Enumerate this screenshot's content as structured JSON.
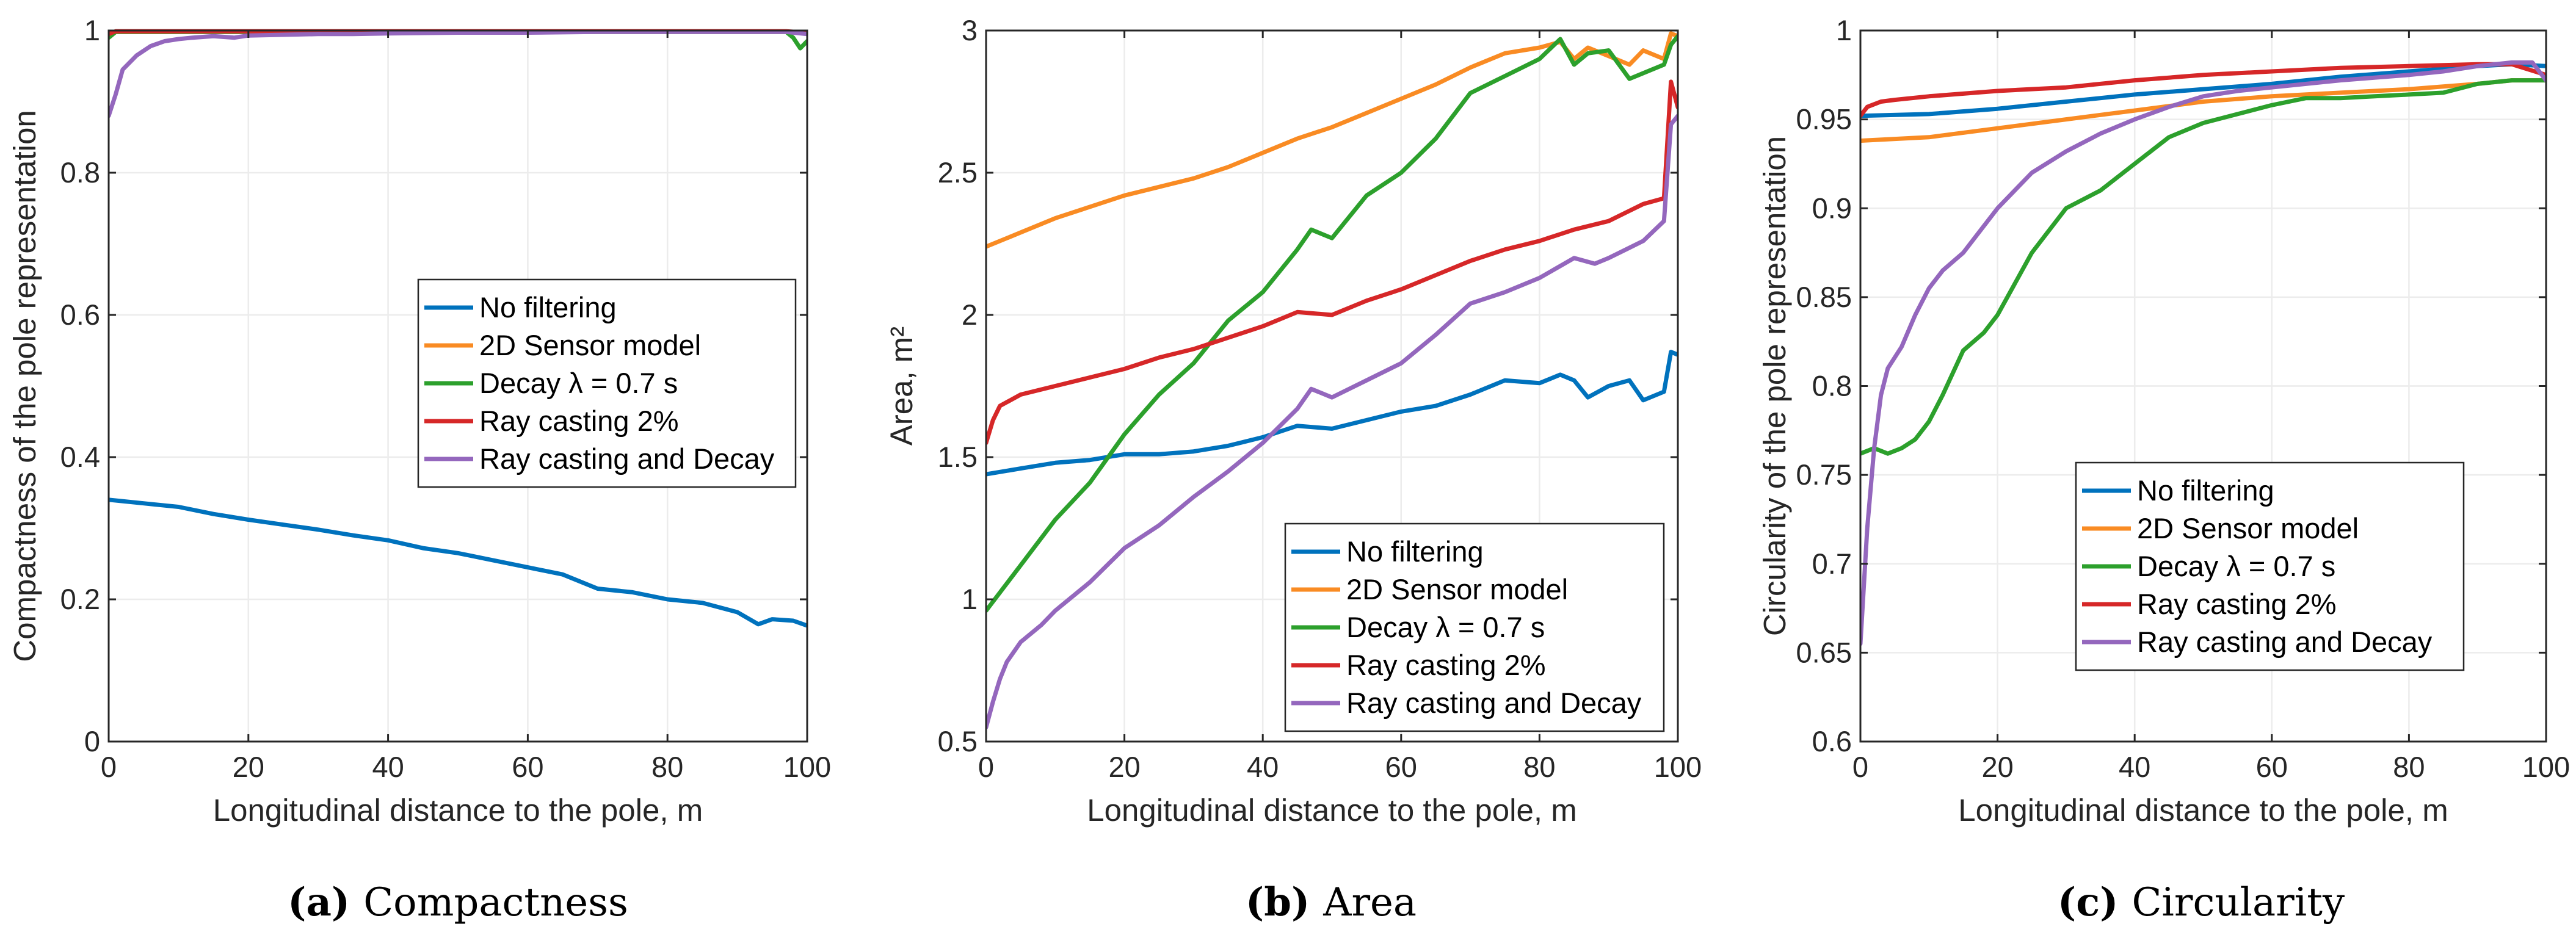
{
  "colors": {
    "blue": "#0072BD",
    "orange": "#F98B23",
    "green": "#2CA02C",
    "red": "#D62728",
    "purple": "#9467BD"
  },
  "chart_data": [
    {
      "type": "line",
      "panel": "a",
      "caption_letter": "(a)",
      "caption_text": "Compactness",
      "xlabel": "Longitudinal distance to the pole, m",
      "ylabel": "Compactness of the pole representation",
      "xlim": [
        0,
        100
      ],
      "ylim": [
        0,
        1
      ],
      "xticks": [
        0,
        20,
        40,
        60,
        80,
        100
      ],
      "xtick_labels": [
        "0",
        "20",
        "40",
        "60",
        "80",
        "100"
      ],
      "yticks": [
        0,
        0.2,
        0.4,
        0.6,
        0.8,
        1
      ],
      "ytick_labels": [
        "0",
        "0.2",
        "0.4",
        "0.6",
        "0.8",
        "1"
      ],
      "grid": true,
      "legend_position": "center-right",
      "series": [
        {
          "name": "No filtering",
          "color": "#0072BD",
          "x": [
            0,
            5,
            10,
            15,
            20,
            25,
            30,
            35,
            40,
            45,
            50,
            55,
            60,
            65,
            70,
            75,
            80,
            85,
            90,
            93,
            95,
            98,
            100
          ],
          "y": [
            0.34,
            0.335,
            0.33,
            0.32,
            0.312,
            0.305,
            0.298,
            0.29,
            0.283,
            0.272,
            0.265,
            0.255,
            0.245,
            0.235,
            0.215,
            0.21,
            0.2,
            0.195,
            0.182,
            0.165,
            0.172,
            0.17,
            0.163
          ]
        },
        {
          "name": "2D Sensor model",
          "color": "#F98B23",
          "x": [
            0,
            1,
            10,
            20,
            30,
            40,
            50,
            60,
            70,
            80,
            90,
            97,
            100
          ],
          "y": [
            0.99,
            0.998,
            0.998,
            0.998,
            0.998,
            0.998,
            0.998,
            0.998,
            0.998,
            0.998,
            0.998,
            0.998,
            0.996
          ]
        },
        {
          "name": "Decay λ = 0.7 s",
          "color": "#2CA02C",
          "x": [
            0,
            1,
            10,
            20,
            30,
            40,
            50,
            60,
            70,
            80,
            90,
            97,
            98,
            99,
            100
          ],
          "y": [
            0.99,
            0.998,
            0.998,
            0.998,
            0.998,
            0.998,
            0.998,
            0.998,
            0.998,
            0.998,
            0.998,
            0.998,
            0.99,
            0.975,
            0.985
          ]
        },
        {
          "name": "Ray casting 2%",
          "color": "#D62728",
          "x": [
            0,
            1,
            10,
            20,
            30,
            40,
            50,
            60,
            70,
            80,
            90,
            97,
            100
          ],
          "y": [
            0.995,
            0.999,
            0.999,
            0.999,
            0.999,
            0.999,
            0.999,
            0.999,
            0.999,
            0.999,
            0.999,
            0.999,
            0.997
          ]
        },
        {
          "name": "Ray casting and Decay",
          "color": "#9467BD",
          "x": [
            0,
            1,
            2,
            4,
            6,
            8,
            10,
            12,
            15,
            18,
            20,
            25,
            30,
            35,
            40,
            50,
            60,
            70,
            80,
            90,
            97,
            100
          ],
          "y": [
            0.88,
            0.91,
            0.945,
            0.965,
            0.978,
            0.985,
            0.988,
            0.99,
            0.992,
            0.99,
            0.993,
            0.994,
            0.995,
            0.995,
            0.996,
            0.997,
            0.997,
            0.998,
            0.998,
            0.998,
            0.998,
            0.995
          ]
        }
      ]
    },
    {
      "type": "line",
      "panel": "b",
      "caption_letter": "(b)",
      "caption_text": "Area",
      "xlabel": "Longitudinal distance to the pole, m",
      "ylabel": "Area, m²",
      "xlim": [
        0,
        100
      ],
      "ylim": [
        0.5,
        3
      ],
      "xticks": [
        0,
        20,
        40,
        60,
        80,
        100
      ],
      "xtick_labels": [
        "0",
        "20",
        "40",
        "60",
        "80",
        "100"
      ],
      "yticks": [
        0.5,
        1,
        1.5,
        2,
        2.5,
        3
      ],
      "ytick_labels": [
        "0.5",
        "1",
        "1.5",
        "2",
        "2.5",
        "3"
      ],
      "grid": true,
      "legend_position": "bottom-right",
      "series": [
        {
          "name": "No filtering",
          "color": "#0072BD",
          "x": [
            0,
            5,
            10,
            15,
            20,
            25,
            30,
            35,
            40,
            45,
            50,
            55,
            60,
            65,
            70,
            75,
            80,
            83,
            85,
            87,
            90,
            93,
            95,
            98,
            99,
            100
          ],
          "y": [
            1.44,
            1.46,
            1.48,
            1.49,
            1.51,
            1.51,
            1.52,
            1.54,
            1.57,
            1.61,
            1.6,
            1.63,
            1.66,
            1.68,
            1.72,
            1.77,
            1.76,
            1.79,
            1.77,
            1.71,
            1.75,
            1.77,
            1.7,
            1.73,
            1.87,
            1.86
          ]
        },
        {
          "name": "2D Sensor model",
          "color": "#F98B23",
          "x": [
            0,
            5,
            10,
            15,
            20,
            25,
            30,
            35,
            40,
            45,
            50,
            55,
            60,
            65,
            70,
            75,
            80,
            83,
            85,
            87,
            90,
            93,
            95,
            98,
            99,
            100
          ],
          "y": [
            2.24,
            2.29,
            2.34,
            2.38,
            2.42,
            2.45,
            2.48,
            2.52,
            2.57,
            2.62,
            2.66,
            2.71,
            2.76,
            2.81,
            2.87,
            2.92,
            2.94,
            2.96,
            2.9,
            2.94,
            2.91,
            2.88,
            2.93,
            2.9,
            2.99,
            2.98
          ]
        },
        {
          "name": "Decay λ = 0.7 s",
          "color": "#2CA02C",
          "x": [
            0,
            5,
            10,
            15,
            20,
            25,
            30,
            35,
            40,
            45,
            47,
            50,
            55,
            60,
            65,
            70,
            75,
            80,
            83,
            85,
            87,
            90,
            93,
            95,
            98,
            99,
            100
          ],
          "y": [
            0.96,
            1.12,
            1.28,
            1.41,
            1.58,
            1.72,
            1.83,
            1.98,
            2.08,
            2.23,
            2.3,
            2.27,
            2.42,
            2.5,
            2.62,
            2.78,
            2.84,
            2.9,
            2.97,
            2.88,
            2.92,
            2.93,
            2.83,
            2.85,
            2.88,
            2.95,
            2.98
          ]
        },
        {
          "name": "Ray casting 2%",
          "color": "#D62728",
          "x": [
            0,
            1,
            2,
            5,
            10,
            15,
            20,
            25,
            30,
            35,
            40,
            45,
            50,
            55,
            60,
            65,
            70,
            75,
            80,
            85,
            90,
            95,
            98,
            99,
            100
          ],
          "y": [
            1.55,
            1.63,
            1.68,
            1.72,
            1.75,
            1.78,
            1.81,
            1.85,
            1.88,
            1.92,
            1.96,
            2.01,
            2.0,
            2.05,
            2.09,
            2.14,
            2.19,
            2.23,
            2.26,
            2.3,
            2.33,
            2.39,
            2.41,
            2.82,
            2.73
          ]
        },
        {
          "name": "Ray casting and Decay",
          "color": "#9467BD",
          "x": [
            0,
            1,
            2,
            3,
            5,
            8,
            10,
            15,
            20,
            25,
            30,
            35,
            40,
            45,
            47,
            50,
            55,
            60,
            65,
            70,
            75,
            80,
            85,
            88,
            90,
            95,
            98,
            99,
            100
          ],
          "y": [
            0.55,
            0.64,
            0.72,
            0.78,
            0.85,
            0.91,
            0.96,
            1.06,
            1.18,
            1.26,
            1.36,
            1.45,
            1.55,
            1.67,
            1.74,
            1.71,
            1.77,
            1.83,
            1.93,
            2.04,
            2.08,
            2.13,
            2.2,
            2.18,
            2.2,
            2.26,
            2.33,
            2.67,
            2.7
          ]
        }
      ]
    },
    {
      "type": "line",
      "panel": "c",
      "caption_letter": "(c)",
      "caption_text": "Circularity",
      "xlabel": "Longitudinal distance to the pole, m",
      "ylabel": "Circularity of the pole representation",
      "xlim": [
        0,
        100
      ],
      "ylim": [
        0.6,
        1
      ],
      "xticks": [
        0,
        20,
        40,
        60,
        80,
        100
      ],
      "xtick_labels": [
        "0",
        "20",
        "40",
        "60",
        "80",
        "100"
      ],
      "yticks": [
        0.6,
        0.65,
        0.7,
        0.75,
        0.8,
        0.85,
        0.9,
        0.95,
        1
      ],
      "ytick_labels": [
        "0.6",
        "0.65",
        "0.7",
        "0.75",
        "0.8",
        "0.85",
        "0.9",
        "0.95",
        "1"
      ],
      "grid": true,
      "legend_position": "lower-center",
      "series": [
        {
          "name": "No filtering",
          "color": "#0072BD",
          "x": [
            0,
            10,
            20,
            30,
            40,
            50,
            60,
            70,
            80,
            90,
            95,
            100
          ],
          "y": [
            0.952,
            0.953,
            0.956,
            0.96,
            0.964,
            0.967,
            0.97,
            0.974,
            0.977,
            0.98,
            0.981,
            0.98
          ]
        },
        {
          "name": "2D Sensor model",
          "color": "#F98B23",
          "x": [
            0,
            10,
            20,
            30,
            40,
            50,
            60,
            70,
            80,
            90,
            95,
            100
          ],
          "y": [
            0.938,
            0.94,
            0.945,
            0.95,
            0.955,
            0.96,
            0.963,
            0.965,
            0.967,
            0.97,
            0.972,
            0.972
          ]
        },
        {
          "name": "Decay λ = 0.7 s",
          "color": "#2CA02C",
          "x": [
            0,
            2,
            4,
            6,
            8,
            10,
            12,
            15,
            18,
            20,
            25,
            30,
            35,
            40,
            45,
            50,
            55,
            60,
            65,
            70,
            75,
            80,
            85,
            90,
            95,
            100
          ],
          "y": [
            0.762,
            0.765,
            0.762,
            0.765,
            0.77,
            0.78,
            0.795,
            0.82,
            0.83,
            0.84,
            0.875,
            0.9,
            0.91,
            0.925,
            0.94,
            0.948,
            0.953,
            0.958,
            0.962,
            0.962,
            0.963,
            0.964,
            0.965,
            0.97,
            0.972,
            0.972
          ]
        },
        {
          "name": "Ray casting 2%",
          "color": "#D62728",
          "x": [
            0,
            1,
            3,
            5,
            10,
            20,
            30,
            40,
            50,
            60,
            70,
            80,
            90,
            95,
            100
          ],
          "y": [
            0.952,
            0.957,
            0.96,
            0.961,
            0.963,
            0.966,
            0.968,
            0.972,
            0.975,
            0.977,
            0.979,
            0.98,
            0.981,
            0.981,
            0.975
          ]
        },
        {
          "name": "Ray casting and Decay",
          "color": "#9467BD",
          "x": [
            0,
            1,
            2,
            3,
            4,
            6,
            8,
            10,
            12,
            15,
            20,
            25,
            30,
            35,
            40,
            45,
            50,
            55,
            60,
            70,
            80,
            85,
            90,
            95,
            98,
            100
          ],
          "y": [
            0.655,
            0.72,
            0.765,
            0.795,
            0.81,
            0.822,
            0.84,
            0.855,
            0.865,
            0.875,
            0.9,
            0.92,
            0.932,
            0.942,
            0.95,
            0.957,
            0.963,
            0.966,
            0.968,
            0.972,
            0.975,
            0.977,
            0.98,
            0.982,
            0.982,
            0.972
          ]
        }
      ]
    }
  ]
}
